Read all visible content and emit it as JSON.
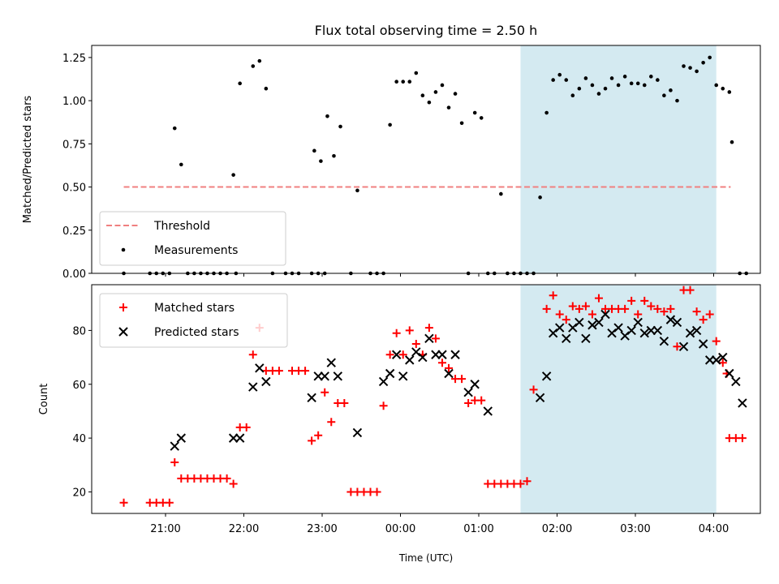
{
  "title": "Flux total observing time = 2.50 h",
  "xlabel": "Time (UTC)",
  "x_ticks": [
    "21:00",
    "22:00",
    "23:00",
    "00:00",
    "01:00",
    "02:00",
    "03:00",
    "04:00"
  ],
  "highlight": {
    "x_range": [
      "01:32",
      "04:02"
    ],
    "color": "#d4eaf1"
  },
  "chart_data": [
    {
      "type": "scatter",
      "ylabel": "Matched/Predicted stars",
      "ylim": [
        0,
        1.32
      ],
      "y_ticks": [
        "0.00",
        "0.25",
        "0.50",
        "0.75",
        "1.00",
        "1.25"
      ],
      "legend": {
        "placement": "lower-left",
        "entries": [
          "Threshold",
          "Measurements"
        ]
      },
      "threshold": {
        "name": "Threshold",
        "value": 0.5,
        "x_range": [
          "20:28",
          "04:13"
        ],
        "color": "#f08080"
      },
      "series": [
        {
          "name": "Measurements",
          "color": "#000000",
          "points": [
            [
              "20:28",
              0
            ],
            [
              "20:48",
              0
            ],
            [
              "20:53",
              0
            ],
            [
              "20:58",
              0
            ],
            [
              "21:03",
              0
            ],
            [
              "21:07",
              0.84
            ],
            [
              "21:12",
              0.63
            ],
            [
              "21:17",
              0
            ],
            [
              "21:22",
              0
            ],
            [
              "21:27",
              0
            ],
            [
              "21:32",
              0
            ],
            [
              "21:37",
              0
            ],
            [
              "21:42",
              0
            ],
            [
              "21:47",
              0
            ],
            [
              "21:52",
              0.57
            ],
            [
              "21:54",
              0
            ],
            [
              "21:57",
              1.1
            ],
            [
              "22:07",
              1.2
            ],
            [
              "22:12",
              1.23
            ],
            [
              "22:17",
              1.07
            ],
            [
              "22:22",
              0
            ],
            [
              "22:32",
              0
            ],
            [
              "22:37",
              0
            ],
            [
              "22:42",
              0
            ],
            [
              "22:52",
              0
            ],
            [
              "22:57",
              0
            ],
            [
              "23:02",
              0
            ],
            [
              "22:54",
              0.71
            ],
            [
              "22:59",
              0.65
            ],
            [
              "23:04",
              0.91
            ],
            [
              "23:09",
              0.68
            ],
            [
              "23:14",
              0.85
            ],
            [
              "23:22",
              0
            ],
            [
              "23:27",
              0.48
            ],
            [
              "23:37",
              0
            ],
            [
              "23:42",
              0
            ],
            [
              "23:47",
              0
            ],
            [
              "23:52",
              0.86
            ],
            [
              "23:57",
              1.11
            ],
            [
              "00:02",
              1.11
            ],
            [
              "00:07",
              1.11
            ],
            [
              "00:12",
              1.16
            ],
            [
              "00:17",
              1.03
            ],
            [
              "00:22",
              0.99
            ],
            [
              "00:27",
              1.05
            ],
            [
              "00:32",
              1.09
            ],
            [
              "00:37",
              0.96
            ],
            [
              "00:42",
              1.04
            ],
            [
              "00:47",
              0.87
            ],
            [
              "00:52",
              0
            ],
            [
              "00:57",
              0.93
            ],
            [
              "01:02",
              0.9
            ],
            [
              "01:07",
              0
            ],
            [
              "01:12",
              0
            ],
            [
              "01:17",
              0.46
            ],
            [
              "01:22",
              0
            ],
            [
              "01:27",
              0
            ],
            [
              "01:32",
              0
            ],
            [
              "01:37",
              0
            ],
            [
              "01:42",
              0
            ],
            [
              "01:47",
              0.44
            ],
            [
              "01:52",
              0.93
            ],
            [
              "01:57",
              1.12
            ],
            [
              "02:02",
              1.15
            ],
            [
              "02:07",
              1.12
            ],
            [
              "02:12",
              1.03
            ],
            [
              "02:17",
              1.07
            ],
            [
              "02:22",
              1.13
            ],
            [
              "02:27",
              1.09
            ],
            [
              "02:32",
              1.04
            ],
            [
              "02:37",
              1.07
            ],
            [
              "02:42",
              1.13
            ],
            [
              "02:47",
              1.09
            ],
            [
              "02:52",
              1.14
            ],
            [
              "02:57",
              1.1
            ],
            [
              "03:02",
              1.1
            ],
            [
              "03:07",
              1.09
            ],
            [
              "03:12",
              1.14
            ],
            [
              "03:17",
              1.12
            ],
            [
              "03:22",
              1.03
            ],
            [
              "03:27",
              1.06
            ],
            [
              "03:32",
              1.0
            ],
            [
              "03:37",
              1.2
            ],
            [
              "03:42",
              1.19
            ],
            [
              "03:47",
              1.17
            ],
            [
              "03:52",
              1.22
            ],
            [
              "03:57",
              1.25
            ],
            [
              "04:02",
              1.09
            ],
            [
              "04:07",
              1.07
            ],
            [
              "04:12",
              1.05
            ],
            [
              "04:14",
              0.76
            ],
            [
              "04:20",
              0
            ],
            [
              "04:25",
              0
            ]
          ]
        }
      ]
    },
    {
      "type": "scatter",
      "ylabel": "Count",
      "ylim": [
        12,
        97
      ],
      "y_ticks": [
        "20",
        "40",
        "60",
        "80"
      ],
      "legend": {
        "placement": "upper-left",
        "entries": [
          "Matched stars",
          "Predicted stars"
        ]
      },
      "series": [
        {
          "name": "Matched stars",
          "marker": "plus",
          "color": "#ff0000",
          "points": [
            [
              "20:28",
              16
            ],
            [
              "20:48",
              16
            ],
            [
              "20:53",
              16
            ],
            [
              "20:58",
              16
            ],
            [
              "21:03",
              16
            ],
            [
              "21:07",
              31
            ],
            [
              "21:12",
              25
            ],
            [
              "21:17",
              25
            ],
            [
              "21:22",
              25
            ],
            [
              "21:27",
              25
            ],
            [
              "21:32",
              25
            ],
            [
              "21:37",
              25
            ],
            [
              "21:42",
              25
            ],
            [
              "21:47",
              25
            ],
            [
              "21:52",
              23
            ],
            [
              "21:57",
              44
            ],
            [
              "22:02",
              44
            ],
            [
              "22:07",
              71
            ],
            [
              "22:12",
              81
            ],
            [
              "22:17",
              65
            ],
            [
              "22:22",
              65
            ],
            [
              "22:27",
              65
            ],
            [
              "22:37",
              65
            ],
            [
              "22:42",
              65
            ],
            [
              "22:47",
              65
            ],
            [
              "22:52",
              39
            ],
            [
              "22:57",
              41
            ],
            [
              "23:02",
              57
            ],
            [
              "23:07",
              46
            ],
            [
              "23:12",
              53
            ],
            [
              "23:17",
              53
            ],
            [
              "23:22",
              20
            ],
            [
              "23:27",
              20
            ],
            [
              "23:32",
              20
            ],
            [
              "23:37",
              20
            ],
            [
              "23:42",
              20
            ],
            [
              "23:47",
              52
            ],
            [
              "23:52",
              71
            ],
            [
              "23:57",
              79
            ],
            [
              "00:02",
              71
            ],
            [
              "00:07",
              80
            ],
            [
              "00:12",
              75
            ],
            [
              "00:17",
              71
            ],
            [
              "00:22",
              81
            ],
            [
              "00:27",
              77
            ],
            [
              "00:32",
              68
            ],
            [
              "00:37",
              66
            ],
            [
              "00:42",
              62
            ],
            [
              "00:47",
              62
            ],
            [
              "00:52",
              53
            ],
            [
              "00:57",
              54
            ],
            [
              "01:02",
              54
            ],
            [
              "01:07",
              23
            ],
            [
              "01:12",
              23
            ],
            [
              "01:17",
              23
            ],
            [
              "01:22",
              23
            ],
            [
              "01:27",
              23
            ],
            [
              "01:32",
              23
            ],
            [
              "01:37",
              24
            ],
            [
              "01:42",
              58
            ],
            [
              "01:52",
              88
            ],
            [
              "01:57",
              93
            ],
            [
              "02:02",
              86
            ],
            [
              "02:07",
              84
            ],
            [
              "02:12",
              89
            ],
            [
              "02:17",
              88
            ],
            [
              "02:22",
              89
            ],
            [
              "02:27",
              86
            ],
            [
              "02:32",
              92
            ],
            [
              "02:37",
              88
            ],
            [
              "02:42",
              88
            ],
            [
              "02:47",
              88
            ],
            [
              "02:52",
              88
            ],
            [
              "02:57",
              91
            ],
            [
              "03:02",
              86
            ],
            [
              "03:07",
              91
            ],
            [
              "03:12",
              89
            ],
            [
              "03:17",
              88
            ],
            [
              "03:22",
              87
            ],
            [
              "03:27",
              88
            ],
            [
              "03:32",
              74
            ],
            [
              "03:37",
              95
            ],
            [
              "03:42",
              95
            ],
            [
              "03:47",
              87
            ],
            [
              "03:52",
              84
            ],
            [
              "03:57",
              86
            ],
            [
              "04:02",
              76
            ],
            [
              "04:07",
              68
            ],
            [
              "04:10",
              64
            ],
            [
              "04:12",
              40
            ],
            [
              "04:17",
              40
            ],
            [
              "04:22",
              40
            ]
          ]
        },
        {
          "name": "Predicted stars",
          "marker": "cross",
          "color": "#000000",
          "points": [
            [
              "21:07",
              37
            ],
            [
              "21:12",
              40
            ],
            [
              "21:52",
              40
            ],
            [
              "21:57",
              40
            ],
            [
              "22:07",
              59
            ],
            [
              "22:12",
              66
            ],
            [
              "22:17",
              61
            ],
            [
              "22:52",
              55
            ],
            [
              "22:57",
              63
            ],
            [
              "23:02",
              63
            ],
            [
              "23:07",
              68
            ],
            [
              "23:12",
              63
            ],
            [
              "23:27",
              42
            ],
            [
              "23:47",
              61
            ],
            [
              "23:52",
              64
            ],
            [
              "23:57",
              71
            ],
            [
              "00:02",
              63
            ],
            [
              "00:07",
              69
            ],
            [
              "00:12",
              72
            ],
            [
              "00:17",
              70
            ],
            [
              "00:22",
              77
            ],
            [
              "00:27",
              71
            ],
            [
              "00:32",
              71
            ],
            [
              "00:37",
              64
            ],
            [
              "00:42",
              71
            ],
            [
              "00:52",
              57
            ],
            [
              "00:57",
              60
            ],
            [
              "01:07",
              50
            ],
            [
              "01:47",
              55
            ],
            [
              "01:52",
              63
            ],
            [
              "01:57",
              79
            ],
            [
              "02:02",
              81
            ],
            [
              "02:07",
              77
            ],
            [
              "02:12",
              81
            ],
            [
              "02:17",
              83
            ],
            [
              "02:22",
              77
            ],
            [
              "02:27",
              82
            ],
            [
              "02:32",
              83
            ],
            [
              "02:37",
              86
            ],
            [
              "02:42",
              79
            ],
            [
              "02:47",
              81
            ],
            [
              "02:52",
              78
            ],
            [
              "02:57",
              80
            ],
            [
              "03:02",
              83
            ],
            [
              "03:07",
              79
            ],
            [
              "03:12",
              80
            ],
            [
              "03:17",
              80
            ],
            [
              "03:22",
              76
            ],
            [
              "03:27",
              84
            ],
            [
              "03:32",
              83
            ],
            [
              "03:37",
              74
            ],
            [
              "03:42",
              79
            ],
            [
              "03:47",
              80
            ],
            [
              "03:52",
              75
            ],
            [
              "03:57",
              69
            ],
            [
              "04:02",
              69
            ],
            [
              "04:07",
              70
            ],
            [
              "04:12",
              64
            ],
            [
              "04:17",
              61
            ],
            [
              "04:22",
              53
            ]
          ]
        }
      ]
    }
  ]
}
